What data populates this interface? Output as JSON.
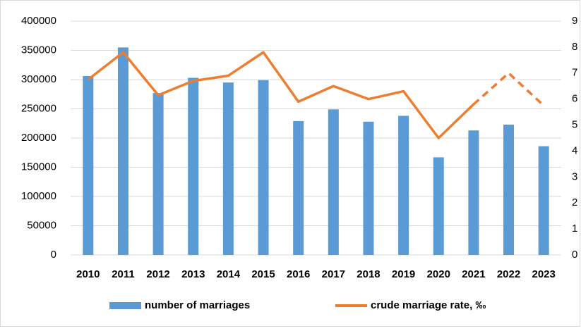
{
  "chart_data": {
    "type": "bar-line",
    "categories": [
      "2010",
      "2011",
      "2012",
      "2013",
      "2014",
      "2015",
      "2016",
      "2017",
      "2018",
      "2019",
      "2020",
      "2021",
      "2022",
      "2023"
    ],
    "series": [
      {
        "name": "number of marriages",
        "color": "#5b9bd5",
        "type": "bar",
        "values": [
          306000,
          355000,
          277000,
          303000,
          295000,
          299000,
          229000,
          249000,
          228000,
          238000,
          167000,
          213000,
          223000,
          186000
        ]
      },
      {
        "name": "crude marriage rate, ‰",
        "color": "#ed7d31",
        "type": "line",
        "axis": "y2",
        "dashed_from": "2021",
        "values": [
          6.75,
          7.8,
          6.15,
          6.7,
          6.9,
          7.8,
          5.9,
          6.5,
          6.0,
          6.3,
          4.5,
          5.8,
          7.0,
          5.75
        ]
      }
    ],
    "ylim": [
      0,
      400000
    ],
    "yticks": [
      0,
      50000,
      100000,
      150000,
      200000,
      250000,
      300000,
      350000,
      400000
    ],
    "y2lim": [
      0,
      9
    ],
    "y2ticks": [
      0,
      1,
      2,
      3,
      4,
      5,
      6,
      7,
      8,
      9
    ],
    "grid": true,
    "legend": "bottom"
  }
}
